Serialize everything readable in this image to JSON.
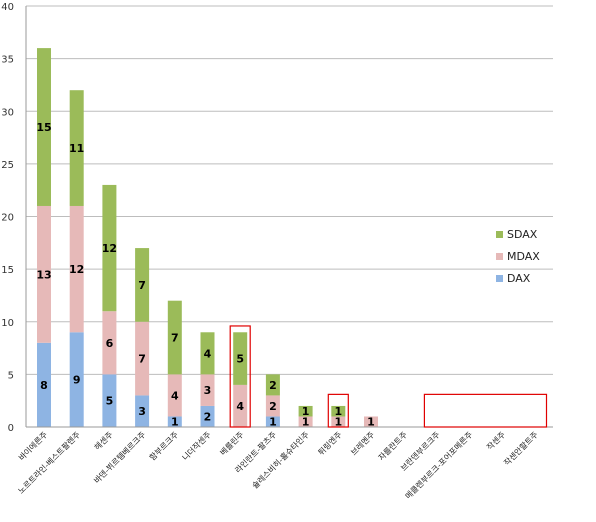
{
  "chart_data": {
    "type": "bar",
    "stacked": true,
    "categories": [
      "바이에른주",
      "노르트라인-베스트팔렌주",
      "헤센주",
      "바덴-뷔르템베르크주",
      "함부르크주",
      "니더작센주",
      "베를린주",
      "라인란트-팔츠주",
      "슐레스비히-홀슈타인주",
      "튀링엔주",
      "브레멘주",
      "자를란트주",
      "브란덴부르크주",
      "메클렌부르크-포어포메른주",
      "작센주",
      "작센안할트주"
    ],
    "series": [
      {
        "name": "DAX",
        "color": "#8eb4e3",
        "values": [
          8,
          9,
          5,
          3,
          1,
          2,
          0,
          1,
          0,
          0,
          0,
          0,
          0,
          0,
          0,
          0
        ]
      },
      {
        "name": "MDAX",
        "color": "#e6b9b8",
        "values": [
          13,
          12,
          6,
          7,
          4,
          3,
          4,
          2,
          1,
          1,
          1,
          0,
          0,
          0,
          0,
          0
        ]
      },
      {
        "name": "SDAX",
        "color": "#9bbb59",
        "values": [
          15,
          11,
          12,
          7,
          7,
          4,
          5,
          2,
          1,
          1,
          0,
          0,
          0,
          0,
          0,
          0
        ]
      }
    ],
    "yticks": [
      "0",
      "5",
      "10",
      "15",
      "20",
      "25",
      "30",
      "35",
      "40"
    ],
    "ylim": [
      0,
      40
    ],
    "grid": true,
    "legend": "right",
    "highlight_boxes_color": "#e00000"
  }
}
